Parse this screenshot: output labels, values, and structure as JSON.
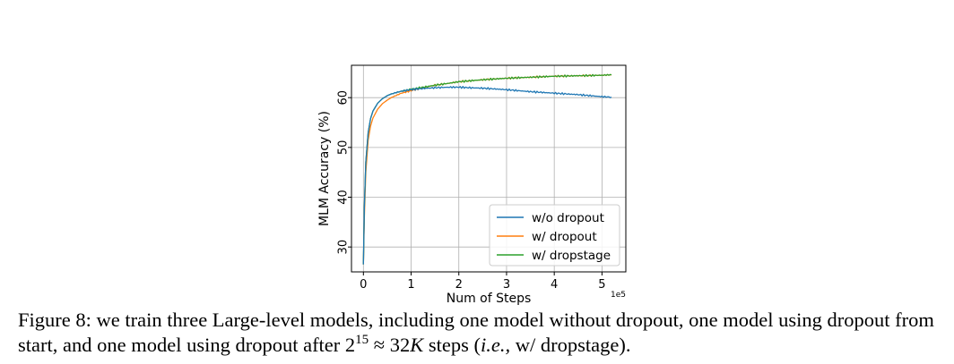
{
  "chart_data": {
    "type": "line",
    "xlabel": "Num of Steps",
    "ylabel": "MLM Accuracy (%)",
    "x_ticks": [
      "0",
      "1",
      "2",
      "3",
      "4",
      "5"
    ],
    "x_offset_label": "1e5",
    "y_ticks": [
      "30",
      "40",
      "50",
      "60"
    ],
    "xlim": [
      -0.25,
      5.5
    ],
    "ylim": [
      25,
      66.5
    ],
    "grid": true,
    "legend_placement": "lower-right",
    "series": [
      {
        "name": "w/o dropout",
        "color": "#1f77b4",
        "x": [
          0,
          0.02,
          0.05,
          0.1,
          0.15,
          0.2,
          0.3,
          0.4,
          0.5,
          0.6,
          0.8,
          1.0,
          1.2,
          1.5,
          1.8,
          2.0,
          2.2,
          2.5,
          3.0,
          3.5,
          4.0,
          4.5,
          5.0,
          5.2
        ],
        "y": [
          26.5,
          38,
          47,
          53,
          55.8,
          57.3,
          58.9,
          59.8,
          60.4,
          60.8,
          61.3,
          61.6,
          61.8,
          62.0,
          62.1,
          62.1,
          62.0,
          61.9,
          61.6,
          61.2,
          60.9,
          60.6,
          60.2,
          60.1
        ]
      },
      {
        "name": "w/ dropout",
        "color": "#ff7f0e",
        "x": [
          0,
          0.02,
          0.05,
          0.1,
          0.15,
          0.2,
          0.3,
          0.4,
          0.5,
          0.6,
          0.8,
          1.0,
          1.2,
          1.5,
          1.8,
          2.0,
          2.5,
          3.0,
          3.5,
          4.0,
          4.5,
          5.0,
          5.2
        ],
        "y": [
          26.5,
          36,
          45,
          51.5,
          54.3,
          55.9,
          57.7,
          58.8,
          59.5,
          60.1,
          60.9,
          61.4,
          61.9,
          62.5,
          62.9,
          63.2,
          63.6,
          63.9,
          64.1,
          64.3,
          64.4,
          64.5,
          64.6
        ]
      },
      {
        "name": "w/ dropstage",
        "color": "#2ca02c",
        "x": [
          0,
          0.02,
          0.05,
          0.1,
          0.15,
          0.2,
          0.3,
          0.4,
          0.5,
          0.6,
          0.8,
          1.0,
          1.2,
          1.5,
          1.8,
          2.0,
          2.5,
          3.0,
          3.5,
          4.0,
          4.5,
          5.0,
          5.2
        ],
        "y": [
          26.5,
          38,
          47,
          53,
          55.8,
          57.3,
          58.9,
          59.8,
          60.4,
          60.8,
          61.3,
          61.7,
          62.0,
          62.5,
          62.9,
          63.2,
          63.6,
          63.9,
          64.1,
          64.3,
          64.4,
          64.5,
          64.6
        ]
      }
    ]
  },
  "caption": {
    "prefix": "Figure 8: we train three Large-level models, including one model without dropout, one model using dropout from start, and one model using dropout after ",
    "base": "2",
    "exponent": "15",
    "approx": "≈",
    "value": "32",
    "value_unit": "K",
    "middle": " steps (",
    "ie": "i.e.,",
    "suffix": " w/ dropstage)."
  }
}
